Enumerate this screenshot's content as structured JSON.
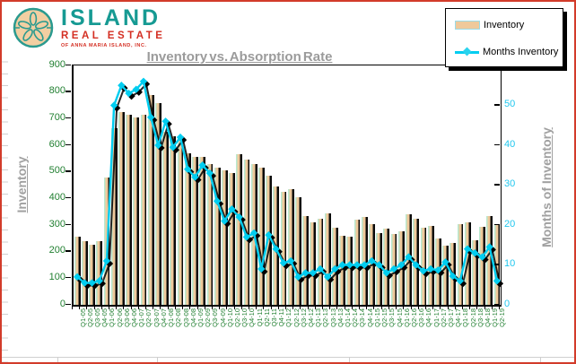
{
  "logo": {
    "name": "ISLAND",
    "subtitle": "REAL ESTATE",
    "tagline": "OF ANNA MARIA ISLAND, INC.",
    "icon": "sand-dollar",
    "name_color": "#169a93",
    "subtitle_color": "#d42f23"
  },
  "frame": {
    "border_color": "#d23b2a",
    "background": "#ffffff"
  },
  "chart_data": {
    "type": "bar",
    "subtype": "bar+line combo",
    "title": "Inventory vs. Absorption Rate",
    "title_color": "#9b9b9b",
    "legend_position": "top-right",
    "legend": [
      "Inventory",
      "Months Inventory"
    ],
    "categories": [
      "Q1-05",
      "Q2-05",
      "Q3-05",
      "Q4-05",
      "Q1-06",
      "Q2-06",
      "Q3-06",
      "Q4-06",
      "Q1-07",
      "Q2-07",
      "Q3-07",
      "Q4-07",
      "Q1-08",
      "Q2-08",
      "Q3-08",
      "Q4-08",
      "Q1-09",
      "Q2-09",
      "Q3-09",
      "Q4-09",
      "Q1-10",
      "Q2-10",
      "Q3-10",
      "Q4-10",
      "Q1-11",
      "Q2-11",
      "Q3-11",
      "Q4-11",
      "Q1-12",
      "Q2-12",
      "Q3-12",
      "Q4-12",
      "Q1-13",
      "Q2-13",
      "Q3-13",
      "Q4-13",
      "Q1-14",
      "Q2-14",
      "Q3-14",
      "Q4-14",
      "Q1-15",
      "Q2-15",
      "Q3-15",
      "Q4-15",
      "Q1-16",
      "Q2-16",
      "Q3-16",
      "Q4-16",
      "Q1-17",
      "Q2-17",
      "Q3-17",
      "Q4-17",
      "Q1-18",
      "Q2-18",
      "Q3-18",
      "Q4-18",
      "Q1-19",
      "Q2-19"
    ],
    "series": [
      {
        "name": "Inventory",
        "type": "bar",
        "axis": "left",
        "color": "#efc99b",
        "highlight_color": "#b9e9cf",
        "shadow_color": "#0a0a0a",
        "values": [
          255,
          240,
          225,
          240,
          480,
          665,
          725,
          715,
          705,
          715,
          790,
          760,
          650,
          635,
          630,
          570,
          555,
          555,
          530,
          515,
          505,
          495,
          565,
          545,
          530,
          515,
          485,
          445,
          425,
          435,
          405,
          335,
          310,
          325,
          345,
          290,
          260,
          255,
          320,
          330,
          305,
          270,
          285,
          265,
          275,
          340,
          325,
          290,
          295,
          250,
          221,
          232,
          305,
          311,
          243,
          294,
          333,
          305
        ]
      },
      {
        "name": "Months Inventory",
        "type": "line",
        "axis": "right",
        "color": "#00cdf0",
        "marker": "diamond",
        "values": [
          7,
          5.5,
          5.5,
          6,
          11,
          50,
          55,
          53,
          54,
          56,
          47,
          40,
          46,
          39.5,
          42,
          34,
          32,
          35,
          33,
          26,
          21,
          24,
          22,
          17,
          18,
          9,
          17.5,
          14,
          10.5,
          11,
          7,
          8,
          8,
          9,
          7,
          9,
          10,
          10,
          10,
          10,
          11,
          10,
          8,
          9,
          10,
          12,
          10,
          8.5,
          9,
          8.7,
          10.7,
          7.2,
          6,
          14,
          13,
          12,
          14.5,
          6
        ]
      }
    ],
    "left_axis": {
      "label": "Inventory",
      "min": 0,
      "max": 900,
      "step": 100,
      "tick_labels": [
        "0",
        "100",
        "200",
        "300",
        "400",
        "500",
        "600",
        "700",
        "800",
        "900"
      ],
      "text_color": "#207f30"
    },
    "right_axis": {
      "label": "Months of Inventory",
      "min": 0,
      "max": 50,
      "step": 10,
      "plot_max": 60,
      "tick_labels": [
        "0",
        "10",
        "20",
        "30",
        "40",
        "50"
      ],
      "text_color": "#22c7ee"
    },
    "grid": false
  }
}
